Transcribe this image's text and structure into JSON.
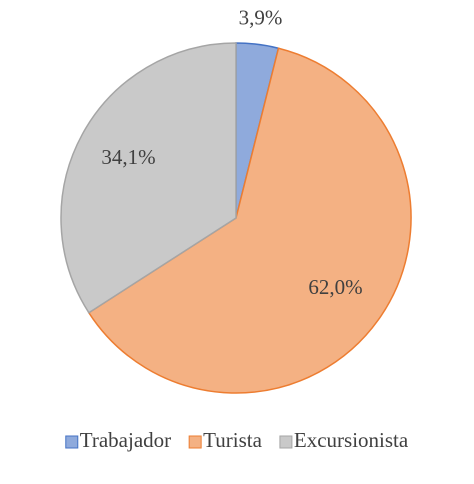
{
  "chart_data": {
    "type": "pie",
    "categories": [
      "Trabajador",
      "Turista",
      "Excursionista"
    ],
    "values": [
      3.9,
      62.0,
      34.1
    ],
    "value_labels": [
      "3,9%",
      "62,0%",
      "34,1%"
    ],
    "colors": [
      "#8faadc",
      "#f4b183",
      "#c9c9c9"
    ],
    "edge_colors": [
      "#4472c4",
      "#ed7d31",
      "#a5a5a5"
    ],
    "legend": "bottom"
  }
}
